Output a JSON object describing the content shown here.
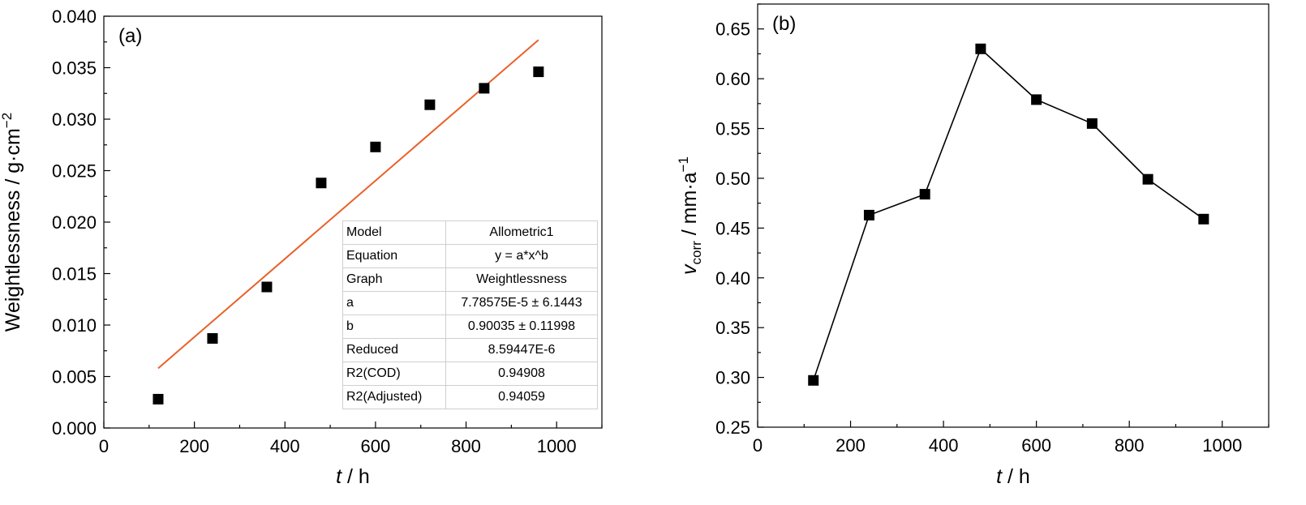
{
  "chart_data": [
    {
      "type": "scatter",
      "panel_label": "(a)",
      "xlabel_symbol": "t",
      "xlabel_unit": " / h",
      "ylabel": "Weightlessness / g·cm",
      "ylabel_sup": "−2",
      "xlim": [
        0,
        1100
      ],
      "ylim": [
        0,
        0.04
      ],
      "x_ticks": [
        0,
        200,
        400,
        600,
        800,
        1000
      ],
      "y_ticks": [
        "0.000",
        "0.005",
        "0.010",
        "0.015",
        "0.020",
        "0.025",
        "0.030",
        "0.035",
        "0.040"
      ],
      "series": [
        {
          "marker": "square",
          "color": "#000000",
          "x": [
            120,
            240,
            360,
            480,
            600,
            720,
            840,
            960
          ],
          "y": [
            0.0028,
            0.0087,
            0.0137,
            0.0238,
            0.0273,
            0.0314,
            0.033,
            0.0346
          ]
        }
      ],
      "fit": {
        "color": "#e8622a",
        "x": [
          120,
          960
        ],
        "y": [
          0.0058,
          0.0377
        ],
        "table": [
          {
            "key": "Model",
            "value": "Allometric1"
          },
          {
            "key": "Equation",
            "value": "y = a*x^b"
          },
          {
            "key": "Graph",
            "value": "Weightlessness"
          },
          {
            "key": "a",
            "value": "7.78575E-5 ± 6.1443"
          },
          {
            "key": "b",
            "value": "0.90035 ± 0.11998"
          },
          {
            "key": "Reduced",
            "value": "8.59447E-6"
          },
          {
            "key": "R2(COD)",
            "value": "0.94908"
          },
          {
            "key": "R2(Adjusted)",
            "value": "0.94059"
          }
        ]
      },
      "grid": false
    },
    {
      "type": "line",
      "panel_label": "(b)",
      "xlabel_symbol": "t",
      "xlabel_unit": " / h",
      "ylabel_symbol": "v",
      "ylabel_sub": "corr",
      "ylabel_unit": " / mm·a",
      "ylabel_sup": "−1",
      "xlim": [
        0,
        1100
      ],
      "ylim": [
        0.25,
        0.675
      ],
      "x_ticks": [
        0,
        200,
        400,
        600,
        800,
        1000
      ],
      "y_ticks": [
        "0.25",
        "0.30",
        "0.35",
        "0.40",
        "0.45",
        "0.50",
        "0.55",
        "0.60",
        "0.65"
      ],
      "series": [
        {
          "marker": "square",
          "color": "#000000",
          "x": [
            120,
            240,
            360,
            480,
            600,
            720,
            840,
            960
          ],
          "y": [
            0.297,
            0.463,
            0.484,
            0.63,
            0.579,
            0.555,
            0.499,
            0.459
          ]
        }
      ],
      "grid": false
    }
  ]
}
